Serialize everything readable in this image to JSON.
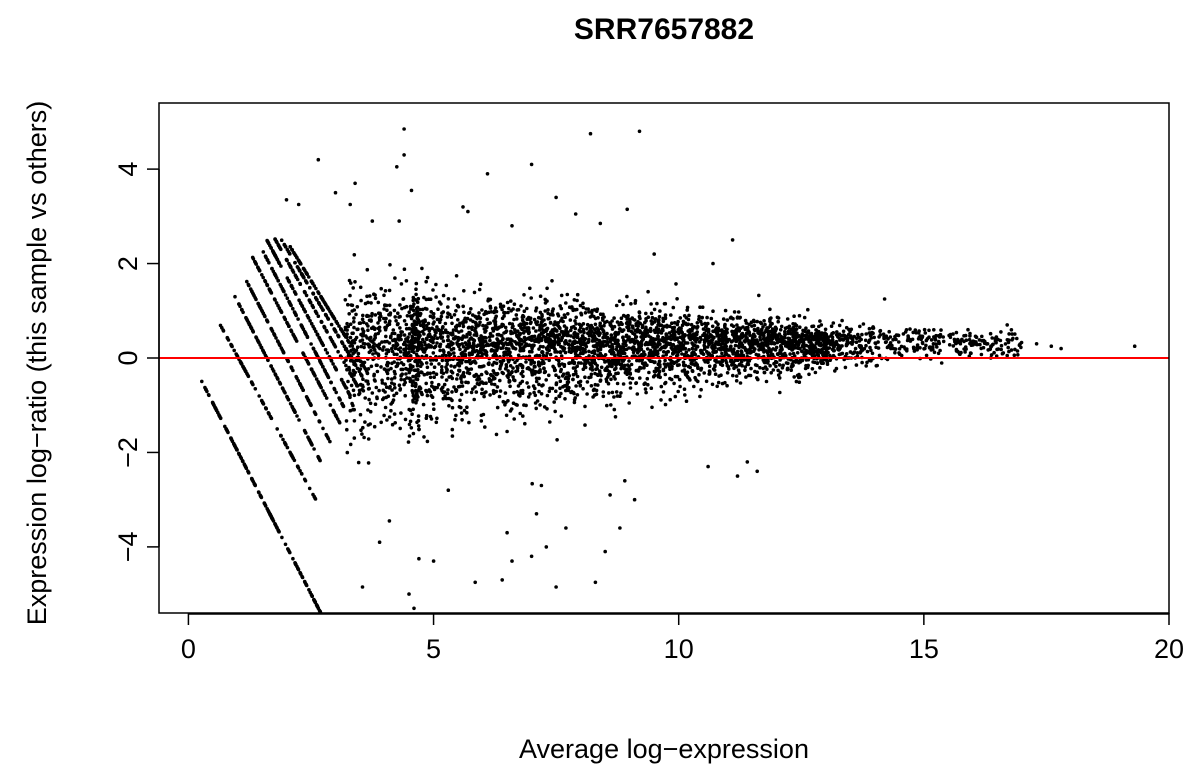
{
  "chart_data": {
    "type": "scatter",
    "title": "SRR7657882",
    "xlabel": "Average log−expression",
    "ylabel": "Expression log−ratio (this sample vs others)",
    "xlim": [
      -0.6,
      20.0
    ],
    "ylim": [
      -5.4,
      5.4
    ],
    "x_ticks": [
      0,
      5,
      10,
      15,
      20
    ],
    "x_tick_labels": [
      "0",
      "5",
      "10",
      "15",
      "20"
    ],
    "y_ticks": [
      -4,
      -2,
      0,
      2,
      4
    ],
    "y_tick_labels": [
      "−4",
      "−2",
      "0",
      "2",
      "4"
    ],
    "grid": false,
    "legend": "none",
    "point_color": "#000000",
    "reference_line": {
      "y": 0,
      "color": "#ff0000"
    },
    "diagonal_bands": [
      {
        "x": [
          0.15,
          2.7
        ],
        "y": [
          -0.25,
          -5.4
        ]
      },
      {
        "x": [
          0.65,
          2.6
        ],
        "y": [
          0.7,
          -3.0
        ]
      },
      {
        "x": [
          0.95,
          2.7
        ],
        "y": [
          1.3,
          -2.2
        ]
      },
      {
        "x": [
          1.15,
          2.9
        ],
        "y": [
          1.7,
          -1.8
        ]
      },
      {
        "x": [
          1.3,
          3.1
        ],
        "y": [
          2.15,
          -1.4
        ]
      },
      {
        "x": [
          1.45,
          3.2
        ],
        "y": [
          2.4,
          -1.1
        ]
      },
      {
        "x": [
          1.6,
          3.3
        ],
        "y": [
          2.5,
          -0.8
        ]
      },
      {
        "x": [
          1.75,
          3.45
        ],
        "y": [
          2.55,
          -0.6
        ]
      },
      {
        "x": [
          1.9,
          3.55
        ],
        "y": [
          2.5,
          -0.4
        ]
      },
      {
        "x": [
          2.05,
          3.65
        ],
        "y": [
          2.4,
          -0.3
        ]
      }
    ],
    "density_profile": {
      "x": [
        3.5,
        5,
        7,
        9,
        11,
        13,
        15,
        17.5
      ],
      "center_y": [
        0.15,
        0.2,
        0.25,
        0.25,
        0.3,
        0.3,
        0.35,
        0.3
      ],
      "spread_sd": [
        0.7,
        0.55,
        0.45,
        0.38,
        0.3,
        0.2,
        0.13,
        0.1
      ]
    },
    "outliers": [
      {
        "x": 4.4,
        "y": 4.85
      },
      {
        "x": 9.2,
        "y": 4.8
      },
      {
        "x": 8.2,
        "y": 4.75
      },
      {
        "x": 4.4,
        "y": 4.3
      },
      {
        "x": 2.65,
        "y": 4.2
      },
      {
        "x": 7.0,
        "y": 4.1
      },
      {
        "x": 4.25,
        "y": 4.05
      },
      {
        "x": 6.1,
        "y": 3.9
      },
      {
        "x": 3.4,
        "y": 3.7
      },
      {
        "x": 4.55,
        "y": 3.55
      },
      {
        "x": 3.0,
        "y": 3.5
      },
      {
        "x": 7.5,
        "y": 3.4
      },
      {
        "x": 2.0,
        "y": 3.35
      },
      {
        "x": 2.25,
        "y": 3.25
      },
      {
        "x": 3.3,
        "y": 3.25
      },
      {
        "x": 5.6,
        "y": 3.2
      },
      {
        "x": 8.95,
        "y": 3.15
      },
      {
        "x": 5.7,
        "y": 3.1
      },
      {
        "x": 7.9,
        "y": 3.05
      },
      {
        "x": 3.75,
        "y": 2.9
      },
      {
        "x": 4.3,
        "y": 2.9
      },
      {
        "x": 8.4,
        "y": 2.85
      },
      {
        "x": 6.6,
        "y": 2.8
      },
      {
        "x": 11.1,
        "y": 2.5
      },
      {
        "x": 9.5,
        "y": 2.2
      },
      {
        "x": 10.7,
        "y": 2.0
      },
      {
        "x": 14.2,
        "y": 1.25
      },
      {
        "x": 16.7,
        "y": 0.7
      },
      {
        "x": 17.6,
        "y": 0.25
      },
      {
        "x": 17.3,
        "y": 0.3
      },
      {
        "x": 17.8,
        "y": 0.2
      },
      {
        "x": 19.3,
        "y": 0.25
      },
      {
        "x": 15.9,
        "y": 0.6
      },
      {
        "x": 16.3,
        "y": 0.3
      },
      {
        "x": 16.7,
        "y": 0.05
      },
      {
        "x": 15.3,
        "y": 0.1
      },
      {
        "x": 3.55,
        "y": -4.85
      },
      {
        "x": 4.5,
        "y": -5.0
      },
      {
        "x": 4.6,
        "y": -5.3
      },
      {
        "x": 5.85,
        "y": -4.75
      },
      {
        "x": 6.4,
        "y": -4.7
      },
      {
        "x": 7.5,
        "y": -4.85
      },
      {
        "x": 8.3,
        "y": -4.75
      },
      {
        "x": 6.6,
        "y": -4.3
      },
      {
        "x": 7.0,
        "y": -4.2
      },
      {
        "x": 4.7,
        "y": -4.25
      },
      {
        "x": 5.0,
        "y": -4.3
      },
      {
        "x": 8.5,
        "y": -4.1
      },
      {
        "x": 7.3,
        "y": -4.0
      },
      {
        "x": 3.9,
        "y": -3.9
      },
      {
        "x": 6.5,
        "y": -3.7
      },
      {
        "x": 7.7,
        "y": -3.6
      },
      {
        "x": 8.8,
        "y": -3.6
      },
      {
        "x": 4.1,
        "y": -3.45
      },
      {
        "x": 7.1,
        "y": -3.3
      },
      {
        "x": 9.1,
        "y": -3.0
      },
      {
        "x": 8.6,
        "y": -2.9
      },
      {
        "x": 5.3,
        "y": -2.8
      },
      {
        "x": 7.2,
        "y": -2.7
      },
      {
        "x": 8.9,
        "y": -2.6
      },
      {
        "x": 11.2,
        "y": -2.5
      },
      {
        "x": 11.6,
        "y": -2.4
      },
      {
        "x": 11.4,
        "y": -2.2
      },
      {
        "x": 10.6,
        "y": -2.3
      },
      {
        "x": 12.4,
        "y": -0.5
      },
      {
        "x": 13.4,
        "y": -0.2
      }
    ]
  }
}
